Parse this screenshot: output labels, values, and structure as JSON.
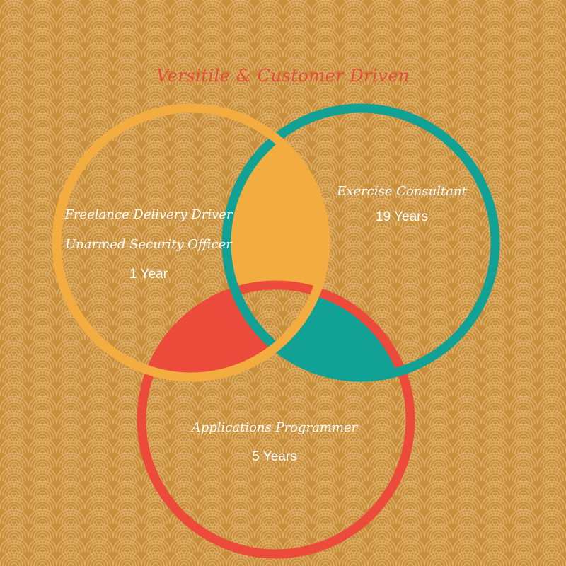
{
  "title": "Versitile & Customer Driven",
  "colors": {
    "background": "#c98e3a",
    "pattern": "#dcae68",
    "title": "#e84b3c",
    "circle_left": "#f3ac40",
    "circle_right": "#12a195",
    "circle_bottom": "#ec4b3c"
  },
  "sets": {
    "left": {
      "line1": "Freelance Delivery Driver",
      "line2": "Unarmed Security Officer",
      "years": "1 Year"
    },
    "right": {
      "line1": "Exercise Consultant",
      "years": "19 Years"
    },
    "bottom": {
      "line1": "Applications Programmer",
      "years": "5 Years"
    }
  }
}
